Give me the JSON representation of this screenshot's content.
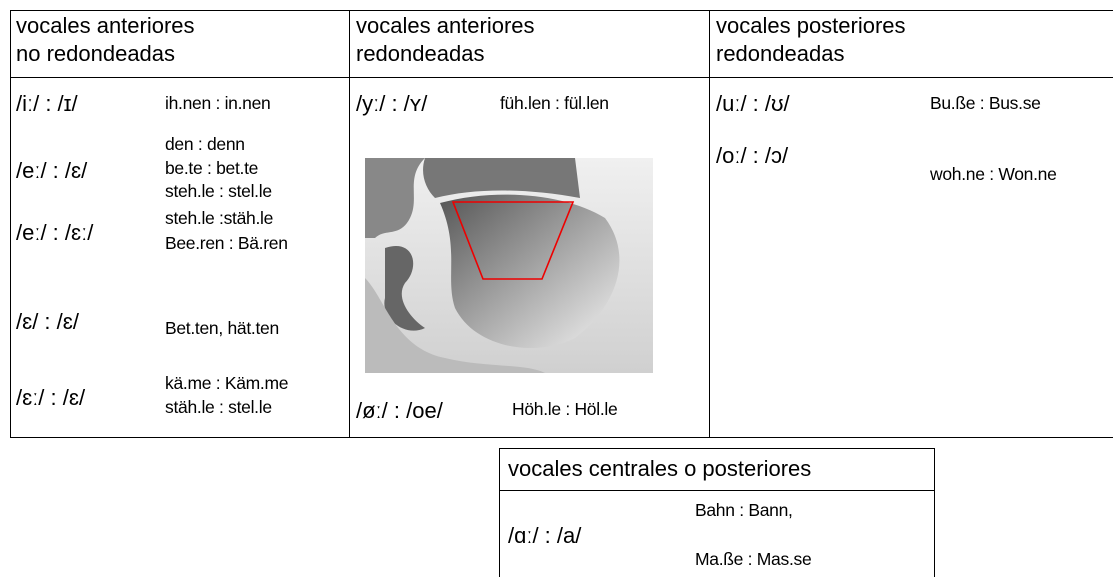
{
  "top_table": {
    "columns": [
      {
        "header": [
          "vocales anteriores",
          "no redondeadas"
        ],
        "rows": [
          {
            "sounds": "/iː/ : /ɪ/",
            "examples": [
              "ih.nen  : in.nen"
            ]
          },
          {
            "sounds": "/eː/ : /ɛ/",
            "examples": [
              "den : denn",
              "be.te : bet.te",
              "steh.le : stel.le"
            ]
          },
          {
            "sounds": "/eː/ : /ɛː/",
            "examples": [
              "steh.le :stäh.le",
              "Bee.ren : Bä.ren"
            ]
          },
          {
            "sounds": "/ɛ/ : /ɛ/",
            "examples": [
              "Bet.ten,  hät.ten"
            ]
          },
          {
            "sounds": "/ɛː/ : /ɛ/",
            "examples": [
              "kä.me : Käm.me",
              "stäh.le : stel.le"
            ]
          }
        ]
      },
      {
        "header": [
          "vocales anteriores",
          "redondeadas"
        ],
        "rows": [
          {
            "sounds": "/yː/ : /ʏ/",
            "examples": [
              "füh.len : fül.len"
            ]
          },
          {
            "sounds": "/øː/ : /oe/",
            "examples": [
              "Höh.le : Höl.le"
            ]
          }
        ]
      },
      {
        "header": [
          "vocales posteriores",
          "redondeadas"
        ],
        "rows": [
          {
            "sounds": "/uː/ : /ʊ/",
            "examples": [
              "Bu.ße : Bus.se"
            ]
          },
          {
            "sounds": "/oː/ : /ɔ/",
            "examples": [
              "woh.ne : Won.ne"
            ]
          }
        ]
      }
    ]
  },
  "bottom_table": {
    "header": "vocales centrales o posteriores",
    "rows": [
      {
        "sounds": "/ɑː/ : /a/",
        "examples": [
          "Bahn : Bann,",
          "Ma.ße : Mas.se"
        ]
      }
    ]
  }
}
